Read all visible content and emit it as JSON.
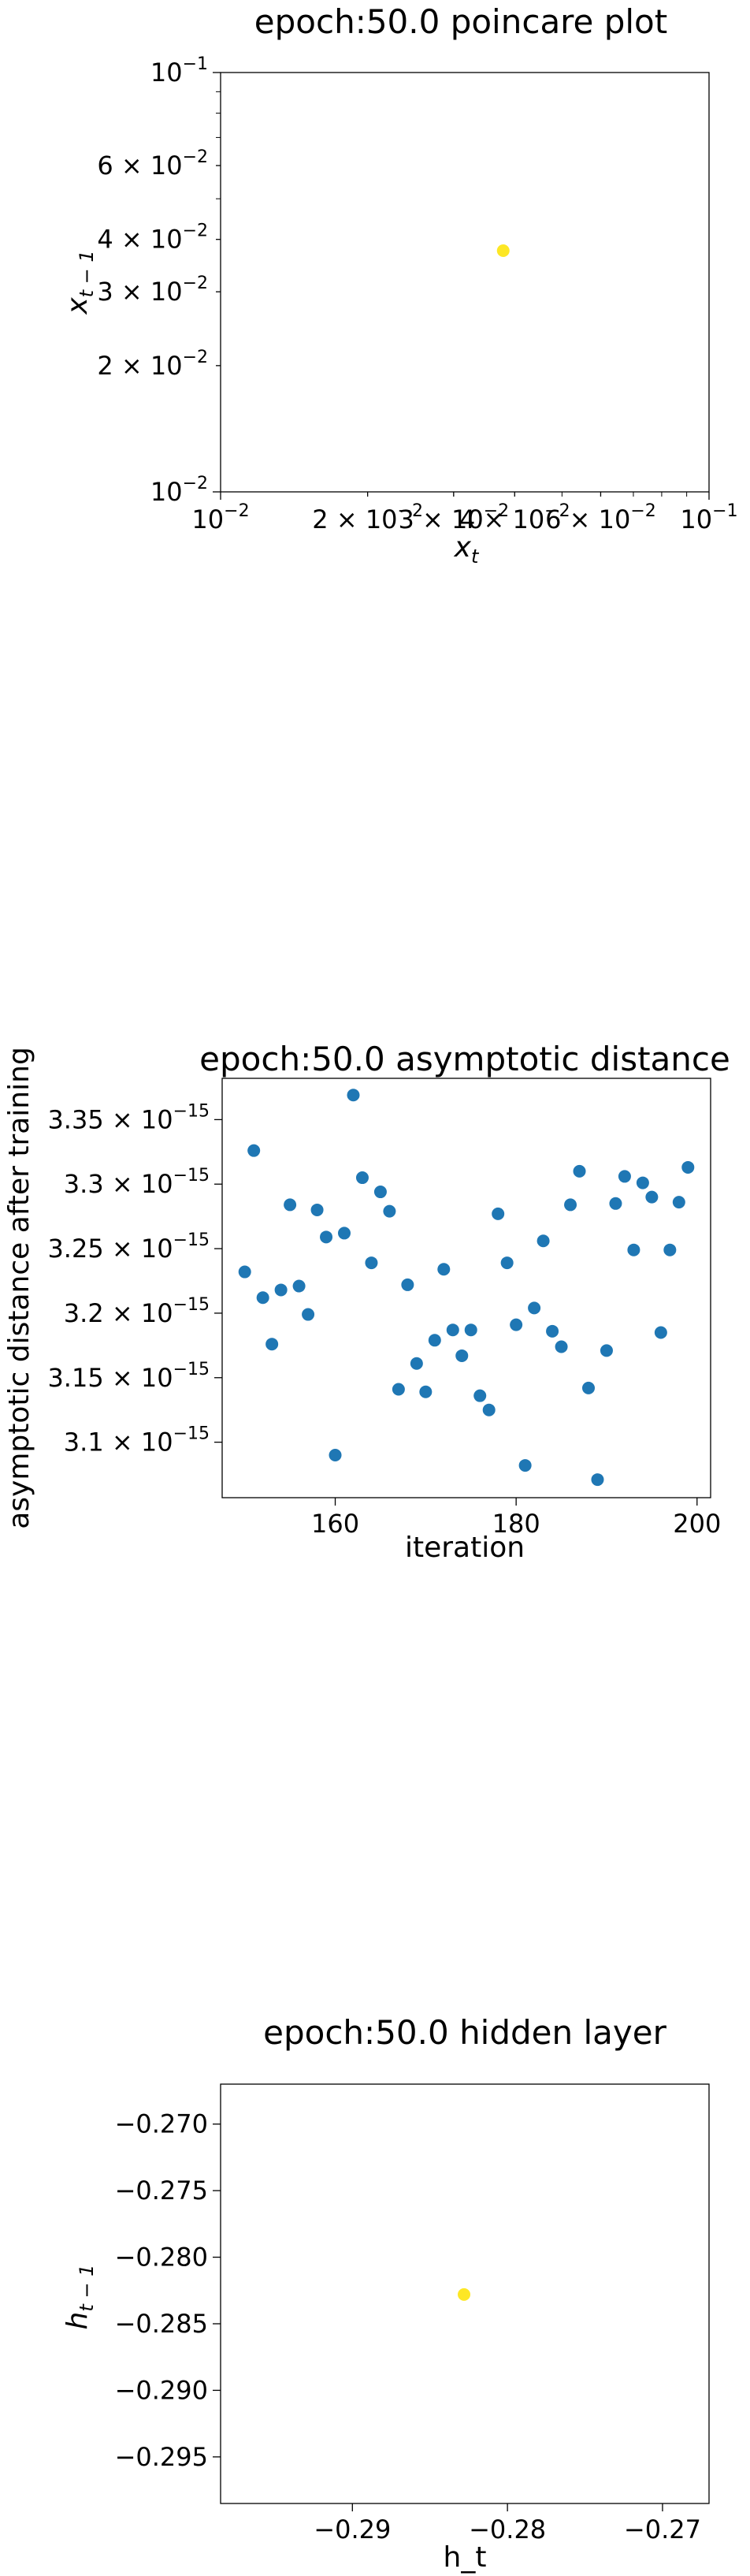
{
  "chart_data": [
    {
      "type": "scatter",
      "title": "epoch:50.0 poincare plot",
      "xlabel_base": "x",
      "xlabel_sub": "t",
      "ylabel_base": "x",
      "ylabel_sub": "t − 1",
      "xscale": "log",
      "yscale": "log",
      "xlim": [
        0.01,
        0.1
      ],
      "ylim": [
        0.01,
        0.1
      ],
      "grid": false,
      "legend": "none",
      "point_color": "#fde725",
      "points": [
        {
          "x": 0.0379,
          "y": 0.0376
        }
      ],
      "xticks": [
        {
          "value": 0.01,
          "mant": "",
          "exp": "−2"
        },
        {
          "value": 0.02,
          "mant": "2 × ",
          "exp": "−2"
        },
        {
          "value": 0.03,
          "mant": "3 × ",
          "exp": "−2"
        },
        {
          "value": 0.04,
          "mant": "4 × ",
          "exp": "−2"
        },
        {
          "value": 0.06,
          "mant": "6 × ",
          "exp": "−2"
        },
        {
          "value": 0.1,
          "mant": "",
          "exp": "−1"
        }
      ],
      "yticks": [
        {
          "value": 0.01,
          "mant": "",
          "exp": "−2"
        },
        {
          "value": 0.02,
          "mant": "2 × ",
          "exp": "−2"
        },
        {
          "value": 0.03,
          "mant": "3 × ",
          "exp": "−2"
        },
        {
          "value": 0.04,
          "mant": "4 × ",
          "exp": "−2"
        },
        {
          "value": 0.06,
          "mant": "6 × ",
          "exp": "−2"
        },
        {
          "value": 0.1,
          "mant": "",
          "exp": "−1"
        }
      ],
      "minor_ticks": [
        0.05,
        0.07,
        0.08,
        0.09
      ]
    },
    {
      "type": "scatter",
      "title": "epoch:50.0 asymptotic distance",
      "xlabel": "iteration",
      "ylabel": "asymptotic distance after training",
      "xlim": [
        147.5,
        201.5
      ],
      "ylim": [
        3.057e-15,
        3.382e-15
      ],
      "grid": false,
      "legend": "none",
      "point_color": "#1f77b4",
      "x": [
        150,
        151,
        152,
        153,
        154,
        155,
        156,
        157,
        158,
        159,
        160,
        161,
        162,
        163,
        164,
        165,
        166,
        167,
        168,
        169,
        170,
        171,
        172,
        173,
        174,
        175,
        176,
        177,
        178,
        179,
        180,
        181,
        182,
        183,
        184,
        185,
        186,
        187,
        188,
        189,
        190,
        191,
        192,
        193,
        194,
        195,
        196,
        197,
        198,
        199
      ],
      "y": [
        3.232,
        3.326,
        3.212,
        3.176,
        3.218,
        3.284,
        3.221,
        3.199,
        3.28,
        3.259,
        3.09,
        3.262,
        3.369,
        3.305,
        3.239,
        3.294,
        3.279,
        3.141,
        3.222,
        3.161,
        3.139,
        3.179,
        3.234,
        3.187,
        3.167,
        3.187,
        3.136,
        3.125,
        3.277,
        3.239,
        3.191,
        3.082,
        3.204,
        3.256,
        3.186,
        3.174,
        3.284,
        3.31,
        3.142,
        3.071,
        3.171,
        3.285,
        3.306,
        3.249,
        3.301,
        3.29,
        3.185,
        3.249,
        3.286,
        3.313
      ],
      "y_unit_exp": -15,
      "xticks": [
        {
          "value": 160,
          "label": "160"
        },
        {
          "value": 180,
          "label": "180"
        },
        {
          "value": 200,
          "label": "200"
        }
      ],
      "yticks": [
        {
          "value": 3.1,
          "mant": "3.1 × ",
          "exp": "−15"
        },
        {
          "value": 3.15,
          "mant": "3.15 × ",
          "exp": "−15"
        },
        {
          "value": 3.2,
          "mant": "3.2 × ",
          "exp": "−15"
        },
        {
          "value": 3.25,
          "mant": "3.25 × ",
          "exp": "−15"
        },
        {
          "value": 3.3,
          "mant": "3.3 × ",
          "exp": "−15"
        },
        {
          "value": 3.35,
          "mant": "3.35 × ",
          "exp": "−15"
        }
      ]
    },
    {
      "type": "scatter",
      "title": "epoch:50.0 hidden layer",
      "xlabel": "h_t",
      "ylabel_base": "h",
      "ylabel_sub": "t − 1",
      "xlim": [
        -0.2985,
        -0.267
      ],
      "ylim": [
        -0.2985,
        -0.267
      ],
      "grid": false,
      "legend": "none",
      "point_color": "#fde725",
      "points": [
        {
          "x": -0.2828,
          "y": -0.2828
        }
      ],
      "xticks": [
        {
          "value": -0.29,
          "label": "−0.29"
        },
        {
          "value": -0.28,
          "label": "−0.28"
        },
        {
          "value": -0.27,
          "label": "−0.27"
        }
      ],
      "yticks": [
        {
          "value": -0.27,
          "label": "−0.270"
        },
        {
          "value": -0.275,
          "label": "−0.275"
        },
        {
          "value": -0.28,
          "label": "−0.280"
        },
        {
          "value": -0.285,
          "label": "−0.285"
        },
        {
          "value": -0.29,
          "label": "−0.290"
        },
        {
          "value": -0.295,
          "label": "−0.295"
        }
      ]
    }
  ]
}
